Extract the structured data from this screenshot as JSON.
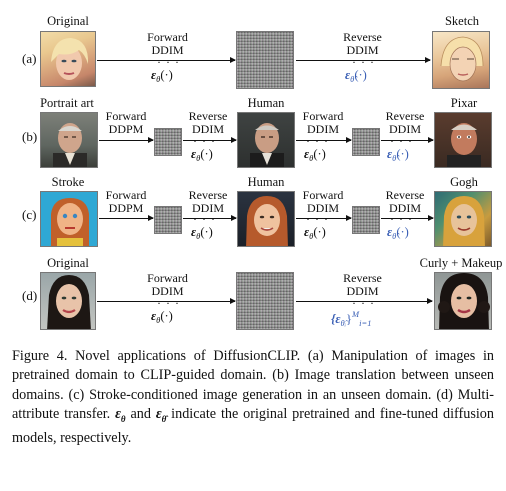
{
  "figure": {
    "rows": [
      {
        "id": "a",
        "label": "(a)",
        "images": [
          {
            "label": "Original"
          },
          {
            "label": ""
          },
          {
            "label": "Sketch"
          }
        ],
        "arrows": [
          {
            "line1": "Forward",
            "line2": "DDIM",
            "eps": "ε",
            "eps_sub": "θ",
            "eps_args": "(·)",
            "fine_tuned": false
          },
          {
            "line1": "Reverse",
            "line2": "DDIM",
            "eps": "ε",
            "eps_sub": "θ̂",
            "eps_args": "(·)",
            "fine_tuned": true
          }
        ]
      },
      {
        "id": "b",
        "label": "(b)",
        "images": [
          {
            "label": "Portrait art"
          },
          {
            "label": ""
          },
          {
            "label": "Human"
          },
          {
            "label": ""
          },
          {
            "label": "Pixar"
          }
        ],
        "arrows": [
          {
            "line1": "Forward",
            "line2": "DDPM",
            "eps": "",
            "eps_sub": "",
            "eps_args": "",
            "fine_tuned": false
          },
          {
            "line1": "Reverse",
            "line2": "DDIM",
            "eps": "ε",
            "eps_sub": "θ",
            "eps_args": "(·)",
            "fine_tuned": false
          },
          {
            "line1": "Forward",
            "line2": "DDIM",
            "eps": "ε",
            "eps_sub": "θ",
            "eps_args": "(·)",
            "fine_tuned": false
          },
          {
            "line1": "Reverse",
            "line2": "DDIM",
            "eps": "ε",
            "eps_sub": "θ̂",
            "eps_args": "(·)",
            "fine_tuned": true
          }
        ]
      },
      {
        "id": "c",
        "label": "(c)",
        "images": [
          {
            "label": "Stroke"
          },
          {
            "label": ""
          },
          {
            "label": "Human"
          },
          {
            "label": ""
          },
          {
            "label": "Gogh"
          }
        ],
        "arrows": [
          {
            "line1": "Forward",
            "line2": "DDPM",
            "eps": "",
            "eps_sub": "",
            "eps_args": "",
            "fine_tuned": false
          },
          {
            "line1": "Reverse",
            "line2": "DDIM",
            "eps": "ε",
            "eps_sub": "θ",
            "eps_args": "(·)",
            "fine_tuned": false
          },
          {
            "line1": "Forward",
            "line2": "DDIM",
            "eps": "ε",
            "eps_sub": "θ",
            "eps_args": "(·)",
            "fine_tuned": false
          },
          {
            "line1": "Reverse",
            "line2": "DDIM",
            "eps": "ε",
            "eps_sub": "θ̂",
            "eps_args": "(·)",
            "fine_tuned": true
          }
        ]
      },
      {
        "id": "d",
        "label": "(d)",
        "images": [
          {
            "label": "Original"
          },
          {
            "label": ""
          },
          {
            "label": "Curly + Makeup"
          }
        ],
        "arrows": [
          {
            "line1": "Forward",
            "line2": "DDIM",
            "eps": "ε",
            "eps_sub": "θ",
            "eps_args": "(·)",
            "fine_tuned": false
          },
          {
            "line1": "Reverse",
            "line2": "DDIM",
            "eps": "{ε",
            "eps_sub": "θ̂ᵢ",
            "eps_args": "}",
            "eps_sup": "M",
            "eps_sub2": "i=1",
            "fine_tuned": true
          }
        ]
      }
    ],
    "dots": "· · ·"
  },
  "caption": {
    "prefix": "Figure 4. Novel applications of DiffusionCLIP. (a) Manipulation of images in pretrained domain to CLIP-guided domain. (b) Image translation between unseen domains. (c) Stroke-conditioned image generation in an unseen domain. (d) Multi-attribute transfer. ",
    "eps_theta": "ε",
    "eps_theta_sub": "θ",
    "mid": " and ",
    "eps_hat": "ε",
    "eps_hat_sub": "θ̂",
    "suffix": " indicate the original pretrained and fine-tuned diffusion models, respectively."
  }
}
